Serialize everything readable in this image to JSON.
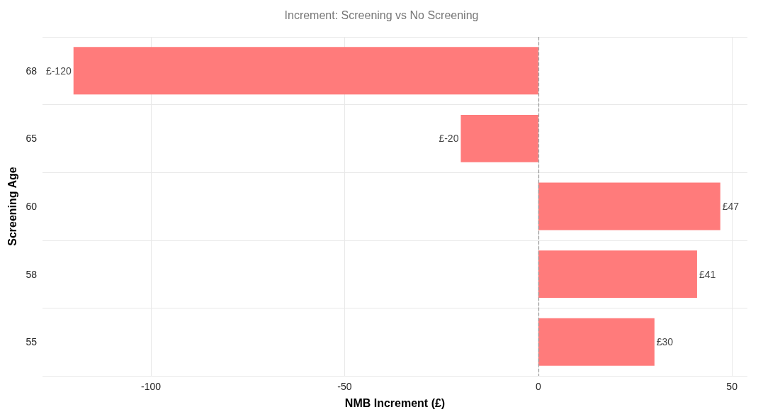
{
  "chart_data": {
    "type": "bar",
    "orientation": "horizontal",
    "title": "Increment: Screening vs No Screening",
    "xlabel": "NMB Increment (£)",
    "ylabel": "Screening Age",
    "categories": [
      "68",
      "65",
      "60",
      "58",
      "55"
    ],
    "values": [
      -120,
      -20,
      47,
      41,
      30
    ],
    "value_labels": [
      "£-120",
      "£-20",
      "£47",
      "£41",
      "£30"
    ],
    "color": "#ff7b7b",
    "xlim": [
      -128,
      54
    ],
    "xticks": [
      -100,
      -50,
      0,
      50
    ],
    "ref_lines": [
      {
        "axis": "x",
        "value": 0,
        "color": "#999999",
        "line_style": "dashed"
      }
    ],
    "grid": true
  }
}
